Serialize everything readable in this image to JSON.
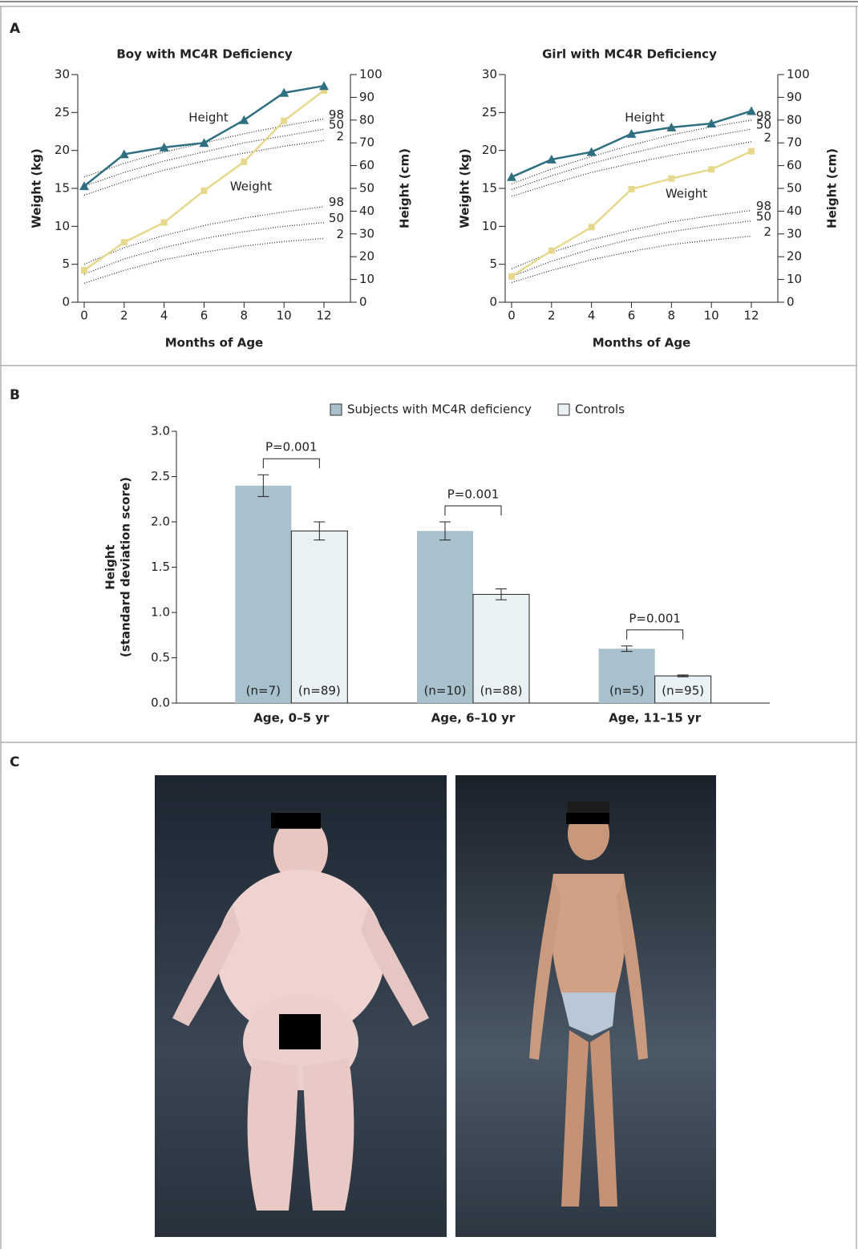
{
  "panels": [
    "A",
    "B",
    "C"
  ],
  "chart_data": [
    {
      "type": "line",
      "title": "Boy with MC4R Deficiency",
      "xlabel": "Months of Age",
      "ylabel": "Weight (kg)",
      "y2label": "Height (cm)",
      "x": [
        0,
        2,
        4,
        6,
        8,
        10,
        12
      ],
      "xlim": [
        0,
        12
      ],
      "xticks": [
        0,
        2,
        4,
        6,
        8,
        10,
        12
      ],
      "ylim": [
        0,
        30
      ],
      "yticks": [
        0,
        5,
        10,
        15,
        20,
        25,
        30
      ],
      "y2lim": [
        0,
        100
      ],
      "y2ticks": [
        0,
        10,
        20,
        30,
        40,
        50,
        60,
        70,
        80,
        90,
        100
      ],
      "series": [
        {
          "name": "Height",
          "axis": "y2",
          "color": "#2f6f82",
          "marker": "triangle",
          "values": [
            51,
            65,
            68,
            70,
            80,
            92,
            95
          ]
        },
        {
          "name": "Weight",
          "axis": "y",
          "color": "#e6d88c",
          "marker": "square",
          "values": [
            4.2,
            7.9,
            10.5,
            14.7,
            18.5,
            23.9,
            27.9
          ]
        },
        {
          "name": "98",
          "axis": "y2",
          "color": "#333333",
          "style": "dotted",
          "values": [
            55,
            61,
            66,
            70,
            74,
            77.5,
            80.5
          ]
        },
        {
          "name": "50",
          "axis": "y2",
          "color": "#333333",
          "style": "dotted",
          "values": [
            51,
            57,
            62,
            66,
            70,
            73,
            76
          ]
        },
        {
          "name": "2",
          "axis": "y2",
          "color": "#333333",
          "style": "dotted",
          "values": [
            47,
            53,
            58,
            62,
            65.5,
            68.5,
            71
          ]
        },
        {
          "name": "98",
          "axis": "y",
          "color": "#333333",
          "style": "dotted",
          "values": [
            5,
            7.2,
            8.8,
            10.1,
            11.1,
            11.9,
            12.6
          ]
        },
        {
          "name": "50",
          "axis": "y",
          "color": "#333333",
          "style": "dotted",
          "values": [
            3.7,
            5.7,
            7.2,
            8.4,
            9.3,
            10,
            10.5
          ]
        },
        {
          "name": "2",
          "axis": "y",
          "color": "#333333",
          "style": "dotted",
          "values": [
            2.5,
            4.2,
            5.6,
            6.6,
            7.4,
            8,
            8.4
          ]
        }
      ]
    },
    {
      "type": "line",
      "title": "Girl with MC4R Deficiency",
      "xlabel": "Months of Age",
      "ylabel": "Weight (kg)",
      "y2label": "Height (cm)",
      "x": [
        0,
        2,
        4,
        6,
        8,
        10,
        12
      ],
      "xlim": [
        0,
        12
      ],
      "xticks": [
        0,
        2,
        4,
        6,
        8,
        10,
        12
      ],
      "ylim": [
        0,
        30
      ],
      "yticks": [
        0,
        5,
        10,
        15,
        20,
        25,
        30
      ],
      "y2lim": [
        0,
        100
      ],
      "y2ticks": [
        0,
        10,
        20,
        30,
        40,
        50,
        60,
        70,
        80,
        90,
        100
      ],
      "series": [
        {
          "name": "Height",
          "axis": "y2",
          "color": "#2f6f82",
          "marker": "triangle",
          "values": [
            55,
            62.7,
            66,
            74,
            76.8,
            78.5,
            84
          ]
        },
        {
          "name": "Weight",
          "axis": "y",
          "color": "#e6d88c",
          "marker": "square",
          "values": [
            3.4,
            6.8,
            9.9,
            14.9,
            16.3,
            17.5,
            19.9
          ]
        },
        {
          "name": "98",
          "axis": "y2",
          "color": "#333333",
          "style": "dotted",
          "values": [
            52,
            58.5,
            64,
            69,
            73.5,
            77,
            80
          ]
        },
        {
          "name": "50",
          "axis": "y2",
          "color": "#333333",
          "style": "dotted",
          "values": [
            49.5,
            55.5,
            61,
            65.5,
            69.5,
            73,
            76
          ]
        },
        {
          "name": "2",
          "axis": "y2",
          "color": "#333333",
          "style": "dotted",
          "values": [
            46.5,
            52,
            57,
            61,
            64.5,
            67.5,
            70.5
          ]
        },
        {
          "name": "98",
          "axis": "y",
          "color": "#333333",
          "style": "dotted",
          "values": [
            4.4,
            6.6,
            8.2,
            9.5,
            10.6,
            11.4,
            12.1
          ]
        },
        {
          "name": "50",
          "axis": "y",
          "color": "#333333",
          "style": "dotted",
          "values": [
            3.4,
            5.4,
            7,
            8.3,
            9.3,
            10.1,
            10.7
          ]
        },
        {
          "name": "2",
          "axis": "y",
          "color": "#333333",
          "style": "dotted",
          "values": [
            2.6,
            4.2,
            5.6,
            6.7,
            7.6,
            8.2,
            8.7
          ]
        }
      ]
    },
    {
      "type": "bar",
      "ylabel": [
        "Height",
        "(standard deviation score)"
      ],
      "categories": [
        "Age, 0–5 yr",
        "Age, 6–10 yr",
        "Age, 11–15 yr"
      ],
      "ylim": [
        0,
        3
      ],
      "yticks": [
        {
          "value": 0,
          "label": "0.0"
        },
        {
          "value": 0.5,
          "label": "0.5"
        },
        {
          "value": 1,
          "label": "1.0"
        },
        {
          "value": 1.5,
          "label": "1.5"
        },
        {
          "value": 2,
          "label": "2.0"
        },
        {
          "value": 2.5,
          "label": "2.5"
        },
        {
          "value": 3,
          "label": "3.0"
        }
      ],
      "legend": "top",
      "series": [
        {
          "name": "Subjects with MC4R deficiency",
          "color": "#a8c1cc",
          "values": [
            2.4,
            1.9,
            0.6
          ],
          "errors": [
            0.12,
            0.1,
            0.03
          ],
          "n_labels": [
            "(n=7)",
            "(n=10)",
            "(n=5)"
          ]
        },
        {
          "name": "Controls",
          "color": "#e9f1f4",
          "values": [
            1.9,
            1.2,
            0.3
          ],
          "errors": [
            0.1,
            0.06,
            0.01
          ],
          "n_labels": [
            "(n=89)",
            "(n=88)",
            "(n=95)"
          ]
        }
      ],
      "annotations": [
        "P=0.001",
        "P=0.001",
        "P=0.001"
      ]
    }
  ]
}
